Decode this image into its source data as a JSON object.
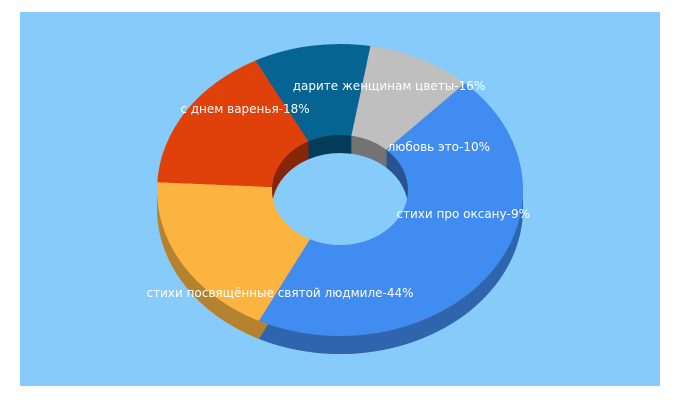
{
  "chart_data": {
    "type": "pie",
    "variant": "donut-3d",
    "title": "",
    "legend": "none",
    "background": "#87cbfa",
    "slices": [
      {
        "label": "стихи посвящённые святой людмиле",
        "value": 44,
        "display": "стихи посвящённые святой людмиле-44%",
        "color": "#418cf0"
      },
      {
        "label": "с днем варенья",
        "value": 18,
        "display": "с днем варенья-18%",
        "color": "#fcb441"
      },
      {
        "label": "дарите женщинам цветы",
        "value": 16,
        "display": "дарите женщинам цветы-16%",
        "color": "#e0400a"
      },
      {
        "label": "любовь это",
        "value": 10,
        "display": "любовь это-10%",
        "color": "#056492"
      },
      {
        "label": "стихи про оксану",
        "value": 9,
        "display": "стихи про оксану-9%",
        "color": "#bfbfbf"
      }
    ]
  }
}
